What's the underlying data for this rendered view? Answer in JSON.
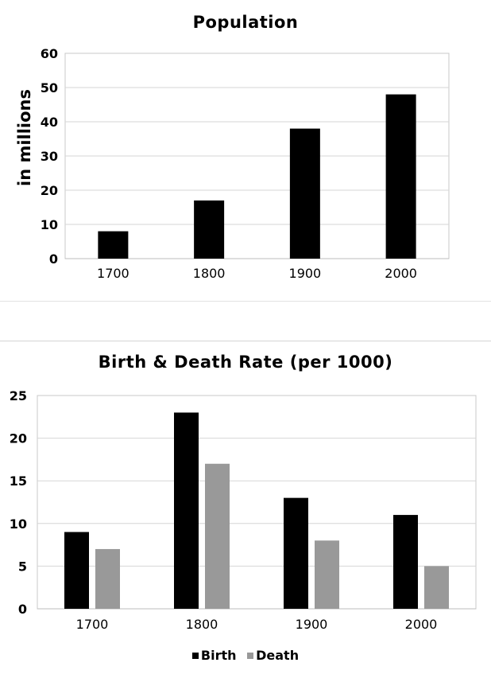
{
  "charts": {
    "population": {
      "title": "Population",
      "ylabel": "in millions"
    },
    "rates": {
      "title": "Birth & Death Rate (per 1000)",
      "legend": [
        {
          "label": "Birth",
          "color": "#000000"
        },
        {
          "label": "Death",
          "color": "#999999"
        }
      ]
    }
  },
  "chart_data": [
    {
      "type": "bar",
      "title": "Population",
      "ylabel": "in millions",
      "xlabel": "",
      "categories": [
        "1700",
        "1800",
        "1900",
        "2000"
      ],
      "values": [
        8,
        17,
        38,
        48
      ],
      "ylim": [
        0,
        60
      ],
      "yticks": [
        0,
        10,
        20,
        30,
        40,
        50,
        60
      ],
      "grid": true,
      "color": "#000000"
    },
    {
      "type": "bar",
      "title": "Birth & Death Rate (per 1000)",
      "xlabel": "",
      "ylabel": "",
      "categories": [
        "1700",
        "1800",
        "1900",
        "2000"
      ],
      "series": [
        {
          "name": "Birth",
          "values": [
            9,
            23,
            13,
            11
          ],
          "color": "#000000"
        },
        {
          "name": "Death",
          "values": [
            7,
            17,
            8,
            5
          ],
          "color": "#999999"
        }
      ],
      "ylim": [
        0,
        25
      ],
      "yticks": [
        0,
        5,
        10,
        15,
        20,
        25
      ],
      "grid": true,
      "legend": "bottom"
    }
  ]
}
